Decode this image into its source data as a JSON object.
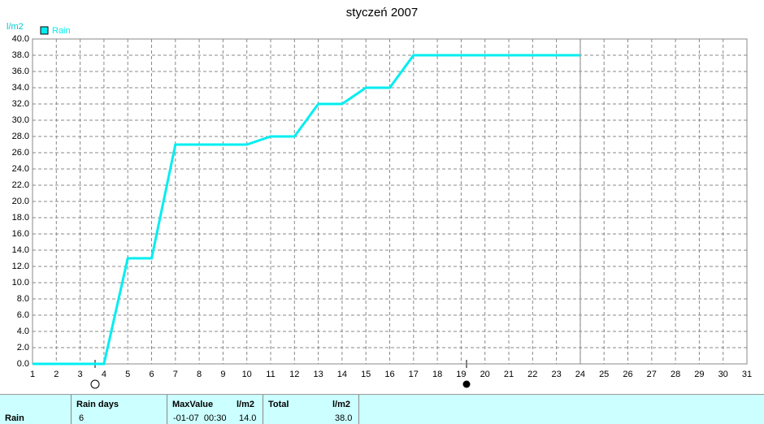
{
  "chart_data": {
    "type": "line",
    "title": "styczeń 2007",
    "y_label": "l/m2",
    "x": [
      1,
      2,
      3,
      4,
      5,
      6,
      7,
      8,
      9,
      10,
      11,
      12,
      13,
      14,
      15,
      16,
      17,
      18,
      19,
      20,
      21,
      22,
      23,
      24
    ],
    "series": [
      {
        "name": "Rain",
        "color": "#00eef0",
        "values": [
          0,
          0,
          0,
          0,
          13,
          13,
          27,
          27,
          27,
          27,
          28,
          28,
          32,
          32,
          34,
          34,
          38,
          38,
          38,
          38,
          38,
          38,
          38,
          38
        ]
      }
    ],
    "xlim": [
      1,
      31
    ],
    "xticks": [
      1,
      2,
      3,
      4,
      5,
      6,
      7,
      8,
      9,
      10,
      11,
      12,
      13,
      14,
      15,
      16,
      17,
      18,
      19,
      20,
      21,
      22,
      23,
      24,
      25,
      26,
      27,
      28,
      29,
      30,
      31
    ],
    "ylim": [
      0,
      40
    ],
    "yticks": [
      {
        "value": 0,
        "label": "0.0"
      },
      {
        "value": 2,
        "label": "2.0"
      },
      {
        "value": 4,
        "label": "4.0"
      },
      {
        "value": 6,
        "label": "6.0"
      },
      {
        "value": 8,
        "label": "8.0"
      },
      {
        "value": 10,
        "label": "10.0"
      },
      {
        "value": 12,
        "label": "12.0"
      },
      {
        "value": 14,
        "label": "14.0"
      },
      {
        "value": 16,
        "label": "16.0"
      },
      {
        "value": 18,
        "label": "18.0"
      },
      {
        "value": 20,
        "label": "20.0"
      },
      {
        "value": 22,
        "label": "22.0"
      },
      {
        "value": 24,
        "label": "24.0"
      },
      {
        "value": 26,
        "label": "26.0"
      },
      {
        "value": 28,
        "label": "28.0"
      },
      {
        "value": 30,
        "label": "30.0"
      },
      {
        "value": 32,
        "label": "32.0"
      },
      {
        "value": 34,
        "label": "34.0"
      },
      {
        "value": 36,
        "label": "36.0"
      },
      {
        "value": 38,
        "label": "38.0"
      },
      {
        "value": 40,
        "label": "40.0"
      }
    ],
    "grid": true
  },
  "table": {
    "header": [
      "Rain days",
      "MaxValue",
      "l/m2",
      "Total",
      "l/m2"
    ],
    "row": [
      "Rain",
      "6",
      "-01-07  00:30",
      "14.0",
      "38.0"
    ]
  }
}
